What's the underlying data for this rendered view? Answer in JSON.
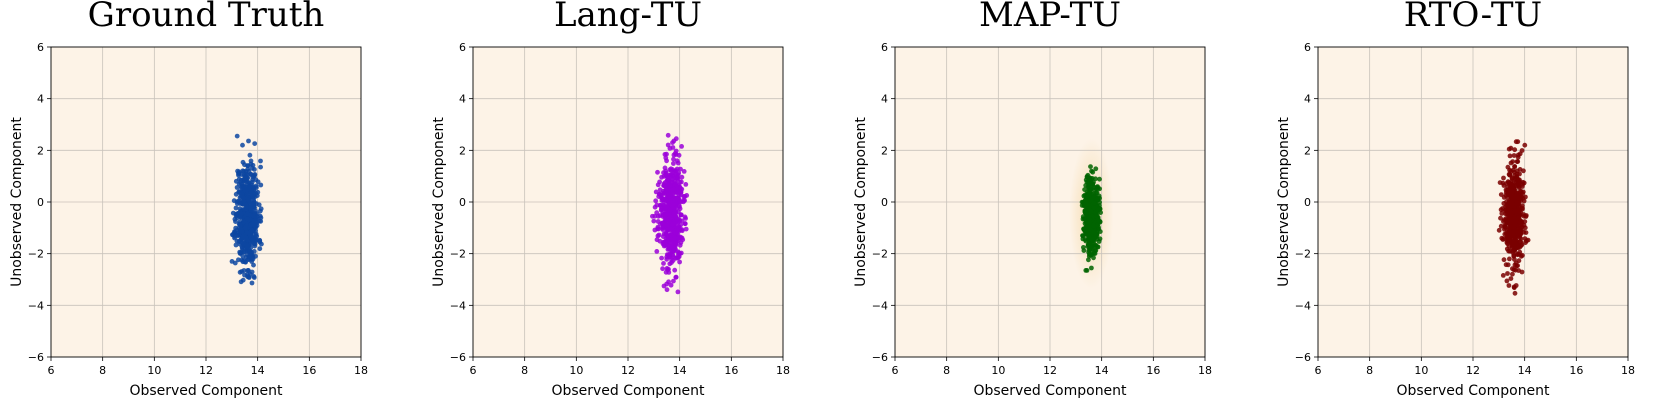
{
  "figure": {
    "panel_background": "#fdf3e7",
    "grid_color": "#c8c2bb"
  },
  "chart_data": [
    {
      "type": "scatter",
      "title": "Ground Truth",
      "xlabel": "Observed Component",
      "ylabel": "Unobserved Component",
      "xlim": [
        6,
        18
      ],
      "ylim": [
        -6,
        6
      ],
      "xticks": [
        6,
        8,
        10,
        12,
        14,
        16,
        18
      ],
      "yticks": [
        -6,
        -4,
        -2,
        0,
        2,
        4,
        6
      ],
      "ytick_labels": [
        "−6",
        "−4",
        "−2",
        "0",
        "2",
        "4",
        "6"
      ],
      "grid": true,
      "color": "#0d47a1",
      "density_halo": false,
      "cloud": {
        "n": 560,
        "center": [
          13.6,
          -0.5
        ],
        "std": [
          0.22,
          1.05
        ],
        "x_range": [
          13.0,
          14.2
        ],
        "y_range": [
          -3.4,
          2.7
        ],
        "seed": 11
      }
    },
    {
      "type": "scatter",
      "title": "Lang-TU",
      "xlabel": "Observed Component",
      "ylabel": "Unobserved Component",
      "xlim": [
        6,
        18
      ],
      "ylim": [
        -6,
        6
      ],
      "xticks": [
        6,
        8,
        10,
        12,
        14,
        16,
        18
      ],
      "yticks": [
        -6,
        -4,
        -2,
        0,
        2,
        4,
        6
      ],
      "ytick_labels": [
        "−6",
        "−4",
        "−2",
        "0",
        "2",
        "4",
        "6"
      ],
      "grid": true,
      "color": "#9b00d9",
      "density_halo": false,
      "cloud": {
        "n": 560,
        "center": [
          13.65,
          -0.45
        ],
        "std": [
          0.24,
          1.1
        ],
        "x_range": [
          12.7,
          14.4
        ],
        "y_range": [
          -3.7,
          2.9
        ],
        "seed": 23
      }
    },
    {
      "type": "scatter",
      "title": "MAP-TU",
      "xlabel": "Observed Component",
      "ylabel": "Unobserved Component",
      "xlim": [
        6,
        18
      ],
      "ylim": [
        -6,
        6
      ],
      "xticks": [
        6,
        8,
        10,
        12,
        14,
        16,
        18
      ],
      "yticks": [
        -6,
        -4,
        -2,
        0,
        2,
        4,
        6
      ],
      "ytick_labels": [
        "−6",
        "−4",
        "−2",
        "0",
        "2",
        "4",
        "6"
      ],
      "grid": true,
      "color": "#006400",
      "density_halo": true,
      "halo_color": "#f4d9a8",
      "cloud": {
        "n": 460,
        "center": [
          13.6,
          -0.45
        ],
        "std": [
          0.15,
          0.75
        ],
        "x_range": [
          13.2,
          14.05
        ],
        "y_range": [
          -2.7,
          1.7
        ],
        "seed": 37
      }
    },
    {
      "type": "scatter",
      "title": "RTO-TU",
      "xlabel": "Observed Component",
      "ylabel": "Unobserved Component",
      "xlim": [
        6,
        18
      ],
      "ylim": [
        -6,
        6
      ],
      "xticks": [
        6,
        8,
        10,
        12,
        14,
        16,
        18
      ],
      "yticks": [
        -6,
        -4,
        -2,
        0,
        2,
        4,
        6
      ],
      "ytick_labels": [
        "−6",
        "−4",
        "−2",
        "0",
        "2",
        "4",
        "6"
      ],
      "grid": true,
      "color": "#7a0000",
      "density_halo": false,
      "cloud": {
        "n": 520,
        "center": [
          13.6,
          -0.55
        ],
        "std": [
          0.22,
          1.05
        ],
        "x_range": [
          13.0,
          14.2
        ],
        "y_range": [
          -3.7,
          2.8
        ],
        "seed": 53
      }
    }
  ]
}
